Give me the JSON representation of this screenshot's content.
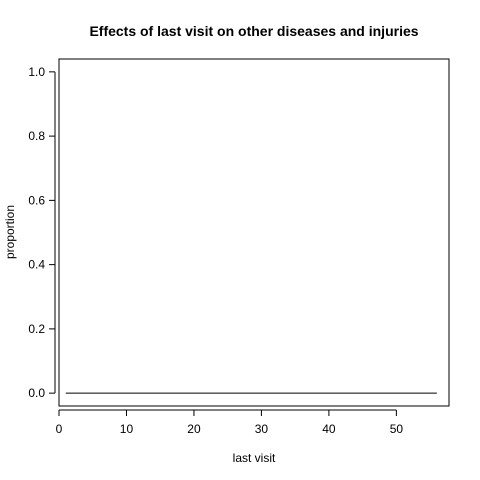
{
  "chart_data": {
    "type": "line",
    "title": "Effects of last visit on other diseases and injuries",
    "xlabel": "last visit",
    "ylabel": "proportion",
    "xlim": [
      0,
      57.8
    ],
    "ylim": [
      -0.04,
      1.04
    ],
    "x_ticks": [
      0,
      10,
      20,
      30,
      40,
      50
    ],
    "y_ticks": [
      0.0,
      0.2,
      0.4,
      0.6,
      0.8,
      1.0
    ],
    "x_tick_labels": [
      "0",
      "10",
      "20",
      "30",
      "40",
      "50"
    ],
    "y_tick_labels": [
      "0.0",
      "0.2",
      "0.4",
      "0.6",
      "0.8",
      "1.0"
    ],
    "grid": false,
    "series": [
      {
        "x": [
          1,
          56
        ],
        "y": [
          0,
          0
        ],
        "color": "#000000"
      }
    ]
  }
}
